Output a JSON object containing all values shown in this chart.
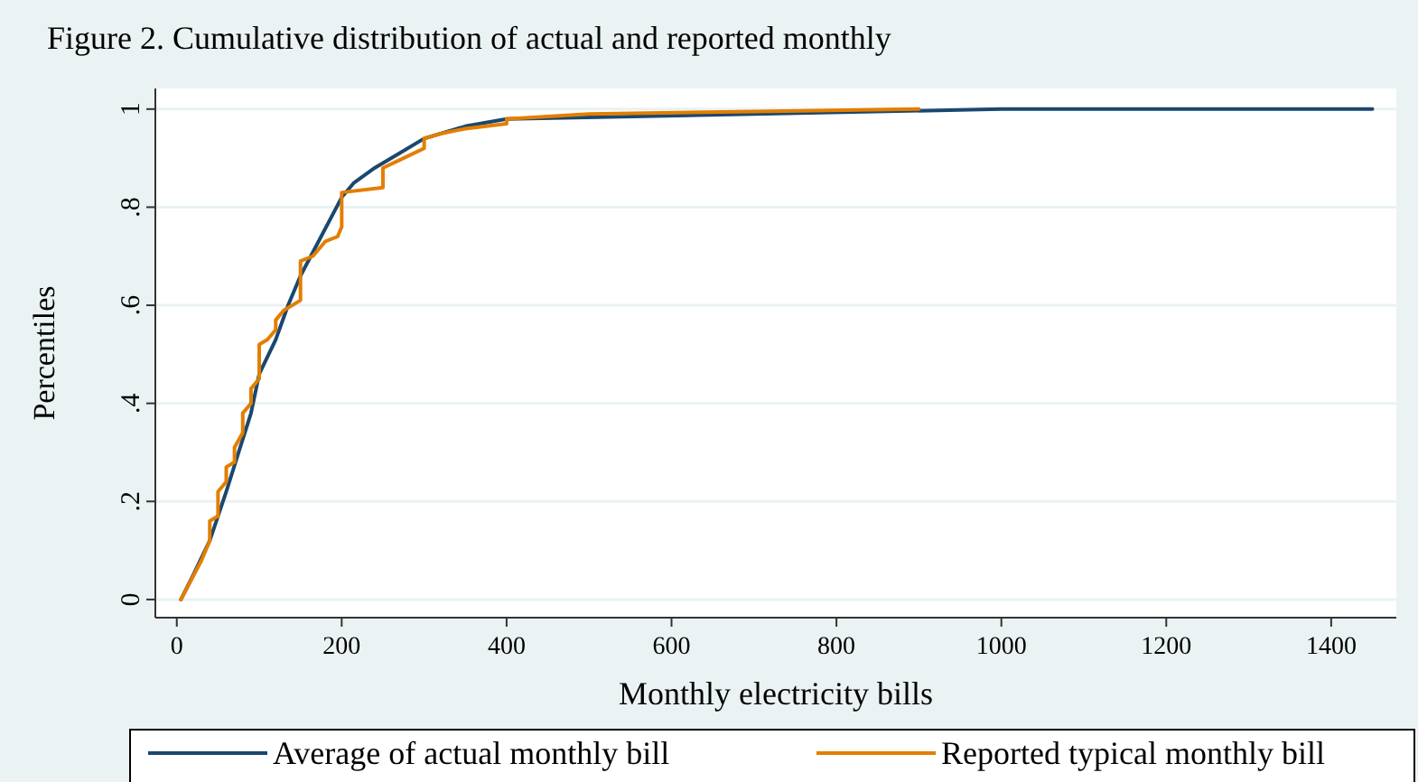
{
  "chart_data": {
    "type": "line",
    "title": "Figure 2. Cumulative distribution of actual and reported monthly",
    "xlabel": "Monthly electricity bills",
    "ylabel": "Percentiles",
    "xlim": [
      -26,
      1479
    ],
    "xticks": [
      0,
      200,
      400,
      600,
      800,
      1000,
      1200,
      1400
    ],
    "ylim": [
      -0.037,
      1.042
    ],
    "yticks": [
      0,
      {
        "value": 0.2,
        "label": ".2"
      },
      {
        "value": 0.4,
        "label": ".4"
      },
      {
        "value": 0.6,
        "label": ".6"
      },
      {
        "value": 0.8,
        "label": ".8"
      },
      1
    ],
    "grid": "y",
    "legend": "bottom",
    "marker": "none",
    "line_style": "solid",
    "series": [
      {
        "name": "Average of actual monthly bill",
        "color": "#1a476f",
        "x": [
          5,
          20,
          40,
          50,
          60,
          75,
          90,
          100,
          120,
          135,
          150,
          175,
          200,
          215,
          240,
          270,
          300,
          350,
          400,
          1000,
          1450
        ],
        "values": [
          0,
          0.05,
          0.12,
          0.17,
          0.22,
          0.3,
          0.38,
          0.46,
          0.53,
          0.6,
          0.66,
          0.74,
          0.82,
          0.85,
          0.88,
          0.91,
          0.94,
          0.965,
          0.98,
          1,
          1
        ]
      },
      {
        "name": "Reported typical monthly bill",
        "color": "#e37e00",
        "x": [
          5,
          30,
          40,
          40,
          50,
          50,
          60,
          60,
          70,
          70,
          80,
          80,
          90,
          90,
          100,
          100,
          110,
          120,
          120,
          130,
          150,
          150,
          165,
          180,
          195,
          200,
          200,
          250,
          250,
          275,
          300,
          300,
          320,
          350,
          400,
          400,
          500,
          700,
          900
        ],
        "values": [
          0,
          0.08,
          0.12,
          0.16,
          0.17,
          0.22,
          0.24,
          0.27,
          0.28,
          0.31,
          0.34,
          0.38,
          0.4,
          0.43,
          0.45,
          0.52,
          0.53,
          0.55,
          0.57,
          0.59,
          0.61,
          0.69,
          0.7,
          0.73,
          0.74,
          0.76,
          0.83,
          0.84,
          0.88,
          0.9,
          0.92,
          0.94,
          0.95,
          0.96,
          0.97,
          0.98,
          0.99,
          0.995,
          1
        ]
      }
    ]
  }
}
